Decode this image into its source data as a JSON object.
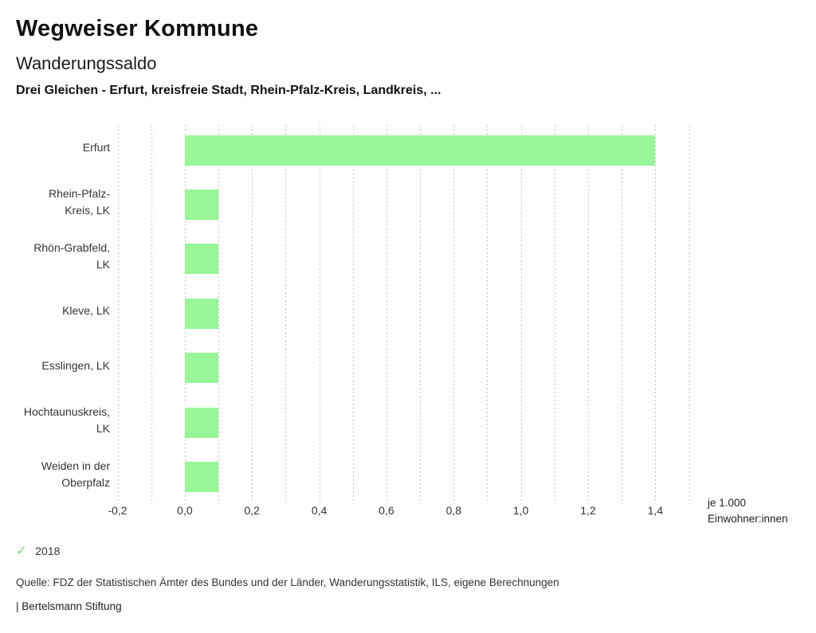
{
  "header": {
    "title": "Wegweiser Kommune",
    "subtitle": "Wanderungssaldo",
    "selection": "Drei Gleichen - Erfurt, kreisfreie Stadt, Rhein-Pfalz-Kreis, Landkreis, ..."
  },
  "chart_data": {
    "type": "bar",
    "orientation": "horizontal",
    "title": "Wanderungssaldo",
    "categories": [
      "Erfurt",
      "Rhein-Pfalz-Kreis, LK",
      "Rhön-Grabfeld, LK",
      "Kleve, LK",
      "Esslingen, LK",
      "Hochtaunuskreis, LK",
      "Weiden in der Oberpfalz"
    ],
    "category_lines": [
      [
        "Erfurt"
      ],
      [
        "Rhein-Pfalz-",
        "Kreis, LK"
      ],
      [
        "Rhön-Grabfeld,",
        "LK"
      ],
      [
        "Kleve, LK"
      ],
      [
        "Esslingen, LK"
      ],
      [
        "Hochtaunuskreis,",
        "LK"
      ],
      [
        "Weiden in der",
        "Oberpfalz"
      ]
    ],
    "series": [
      {
        "name": "2018",
        "values": [
          1.4,
          0.1,
          0.1,
          0.1,
          0.1,
          0.1,
          0.1
        ]
      }
    ],
    "values": [
      1.4,
      0.1,
      0.1,
      0.1,
      0.1,
      0.1,
      0.1
    ],
    "bar_color": "#98f598",
    "xlim": [
      -0.2,
      1.5
    ],
    "grid": true,
    "grid_step": 0.1,
    "tick_values": [
      -0.2,
      0.0,
      0.2,
      0.4,
      0.6,
      0.8,
      1.0,
      1.2,
      1.4
    ],
    "tick_labels": [
      "-0,2",
      "0,0",
      "0,2",
      "0,4",
      "0,6",
      "0,8",
      "1,0",
      "1,2",
      "1,4"
    ],
    "xlabel": "je 1.000 Einwohner:innen",
    "xlabel_lines": [
      "je 1.000",
      "Einwohner:innen"
    ],
    "legend_position": "bottom-left"
  },
  "legend": {
    "icon": "check-icon",
    "label": "2018",
    "color": "#7edb7e"
  },
  "footer": {
    "source": "Quelle: FDZ der Statistischen Ämter des Bundes und der Länder, Wanderungsstatistik, ILS, eigene Berechnungen",
    "branding": "| Bertelsmann Stiftung"
  }
}
